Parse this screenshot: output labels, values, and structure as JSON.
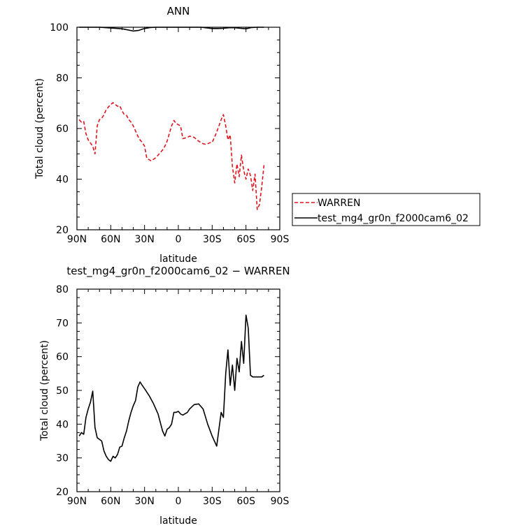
{
  "chart_data": [
    {
      "type": "line",
      "title": "ANN",
      "xlabel": "latitude",
      "ylabel": "Total cloud (percent)",
      "xlim": [
        90,
        -90
      ],
      "ylim": [
        20,
        100
      ],
      "x_ticks": [
        {
          "value": 90,
          "label": "90N"
        },
        {
          "value": 60,
          "label": "60N"
        },
        {
          "value": 30,
          "label": "30N"
        },
        {
          "value": 0,
          "label": "0"
        },
        {
          "value": -30,
          "label": "30S"
        },
        {
          "value": -60,
          "label": "60S"
        },
        {
          "value": -90,
          "label": "90S"
        }
      ],
      "y_ticks": [
        20,
        40,
        60,
        80,
        100
      ],
      "legend_position": "right",
      "series": [
        {
          "name": "WARREN",
          "color": "#e0141e",
          "dash": "dashed",
          "x": [
            88,
            86,
            84,
            82,
            80,
            76,
            74,
            72,
            70,
            68,
            66,
            64,
            62,
            60,
            58,
            56,
            54,
            52,
            50,
            48,
            46,
            44,
            42,
            40,
            38,
            36,
            34,
            32,
            30,
            28,
            24,
            20,
            18,
            16,
            14,
            12,
            10,
            8,
            6,
            4,
            2,
            0,
            -2,
            -4,
            -8,
            -10,
            -14,
            -18,
            -22,
            -24,
            -26,
            -28,
            -30,
            -33,
            -36,
            -38,
            -40,
            -42,
            -44,
            -46,
            -48,
            -50,
            -52,
            -54,
            -56,
            -58,
            -60,
            -62,
            -64,
            -66,
            -68,
            -70,
            -72,
            -74,
            -76
          ],
          "values": [
            63.5,
            62.5,
            62.8,
            58,
            55.5,
            53,
            50,
            61,
            63.5,
            64,
            65.5,
            67.5,
            68.5,
            69.5,
            70.2,
            69.5,
            68.8,
            69,
            67,
            65.5,
            65.2,
            63.5,
            62.5,
            61,
            59,
            57,
            55.5,
            54.5,
            53,
            48.2,
            47.2,
            48.5,
            49.5,
            50.5,
            51.5,
            53,
            55,
            58,
            61,
            63.2,
            62,
            61.5,
            61,
            56,
            56.5,
            57,
            56.5,
            55,
            54,
            53.8,
            54,
            54.4,
            54.5,
            57.5,
            61,
            63.5,
            65.5,
            61,
            55.5,
            57.5,
            45,
            38.5,
            46,
            41,
            49.5,
            43.5,
            40,
            44,
            41.5,
            35.5,
            42,
            28,
            30,
            37,
            45.5
          ]
        },
        {
          "name": "test_mg4_gr0n_f2000cam6_02",
          "color": "#000000",
          "dash": "solid",
          "x": [
            88,
            70,
            60,
            50,
            40,
            35,
            30,
            25,
            20,
            10,
            0,
            -10,
            -20,
            -30,
            -35,
            -40,
            -45,
            -50,
            -55,
            -60,
            -65,
            -70,
            -76
          ],
          "values": [
            100,
            100,
            99.7,
            99.4,
            98.5,
            98.8,
            99.5,
            99.9,
            100,
            100,
            100,
            100,
            100,
            99.5,
            99.5,
            99.6,
            99.8,
            99.8,
            99.6,
            99.4,
            99.9,
            100,
            100
          ]
        }
      ]
    },
    {
      "type": "line",
      "title": "test_mg4_gr0n_f2000cam6_02 − WARREN",
      "xlabel": "latitude",
      "ylabel": "Total cloud (percent)",
      "xlim": [
        90,
        -90
      ],
      "ylim": [
        20,
        80
      ],
      "x_ticks": [
        {
          "value": 90,
          "label": "90N"
        },
        {
          "value": 60,
          "label": "60N"
        },
        {
          "value": 30,
          "label": "30N"
        },
        {
          "value": 0,
          "label": "0"
        },
        {
          "value": -30,
          "label": "30S"
        },
        {
          "value": -60,
          "label": "60S"
        },
        {
          "value": -90,
          "label": "90S"
        }
      ],
      "y_ticks": [
        20,
        30,
        40,
        50,
        60,
        70,
        80
      ],
      "series": [
        {
          "name": "",
          "color": "#000000",
          "dash": "solid",
          "x": [
            88,
            86,
            84,
            82,
            80,
            78,
            76,
            74,
            72,
            70,
            68,
            66,
            64,
            62,
            60,
            58,
            56,
            54,
            52,
            50,
            48,
            46,
            44,
            42,
            40,
            38,
            36,
            34,
            32,
            30,
            28,
            26,
            22,
            18,
            14,
            12,
            10,
            8,
            6,
            4,
            2,
            0,
            -2,
            -4,
            -8,
            -10,
            -14,
            -18,
            -22,
            -26,
            -30,
            -34,
            -38,
            -40,
            -42,
            -44,
            -46,
            -48,
            -50,
            -52,
            -54,
            -56,
            -58,
            -60,
            -62,
            -64,
            -66,
            -68,
            -70,
            -72,
            -74,
            -76
          ],
          "values": [
            36.5,
            37.5,
            37,
            42,
            44.5,
            46.5,
            49.8,
            39,
            36,
            35.5,
            35,
            32,
            30.5,
            29.5,
            29,
            30.5,
            30,
            31,
            33.2,
            33.5,
            36,
            38,
            41,
            43.5,
            45.5,
            47,
            51,
            52.5,
            51.5,
            50.5,
            49.5,
            48.5,
            46,
            43,
            38,
            36.5,
            38.5,
            39,
            40,
            43.5,
            43.5,
            43.8,
            43,
            42.7,
            43.5,
            44.5,
            45.8,
            46,
            44.5,
            40,
            36.5,
            33.5,
            43.5,
            42,
            55,
            62,
            51.5,
            57.5,
            50,
            59.5,
            55.5,
            64.5,
            58,
            72.3,
            68.5,
            54.5,
            54,
            54,
            54,
            54,
            54,
            54.5
          ]
        }
      ]
    }
  ]
}
